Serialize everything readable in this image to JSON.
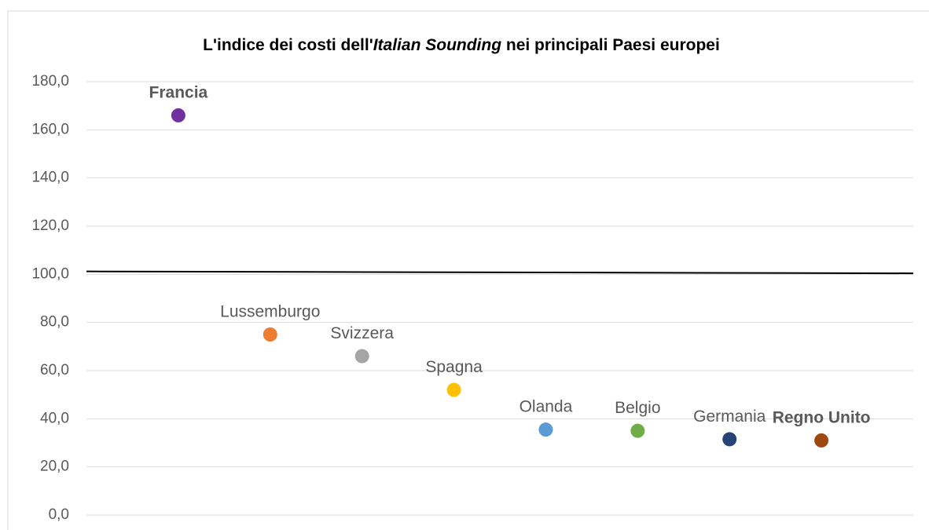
{
  "chart_data": {
    "type": "scatter",
    "title": [
      "L'indice dei costi dell'",
      "Italian Sounding",
      " nei principali Paesi europei"
    ],
    "categories": [
      "Francia",
      "Lussemburgo",
      "Svizzera",
      "Spagna",
      "Olanda",
      "Belgio",
      "Germania",
      "Regno Unito"
    ],
    "values": [
      166,
      75,
      66,
      52,
      35.5,
      35,
      31.5,
      31
    ],
    "colors": [
      "#7030a0",
      "#ed7d31",
      "#a5a5a5",
      "#ffc000",
      "#5b9bd5",
      "#70ad47",
      "#264478",
      "#9e480e"
    ],
    "label_bold": [
      true,
      false,
      false,
      false,
      false,
      false,
      false,
      true
    ],
    "reference_line": {
      "values": [
        101.2,
        100.4
      ],
      "color": "#000000"
    },
    "ylim": [
      0,
      180
    ],
    "yticks": [
      {
        "value": 0,
        "label": "0,0"
      },
      {
        "value": 20,
        "label": "20,0"
      },
      {
        "value": 40,
        "label": "40,0"
      },
      {
        "value": 60,
        "label": "60,0"
      },
      {
        "value": 80,
        "label": "80,0"
      },
      {
        "value": 100,
        "label": "100,0"
      },
      {
        "value": 120,
        "label": "120,0"
      },
      {
        "value": 140,
        "label": "140,0"
      },
      {
        "value": 160,
        "label": "160,0"
      },
      {
        "value": 180,
        "label": "180,0"
      }
    ],
    "grid": true
  }
}
